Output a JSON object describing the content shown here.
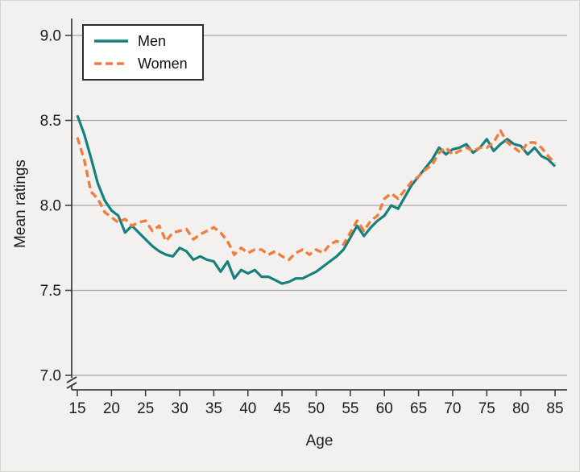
{
  "chart_data": {
    "type": "line",
    "title": "",
    "xlabel": "Age",
    "ylabel": "Mean ratings",
    "xlim": [
      15,
      85
    ],
    "ylim": [
      7.0,
      9.0
    ],
    "axis_break": true,
    "grid": "horizontal",
    "legend_position": "top-left",
    "x_ticks": [
      15,
      20,
      25,
      30,
      35,
      40,
      45,
      50,
      55,
      60,
      65,
      70,
      75,
      80,
      85
    ],
    "y_ticks": [
      7.0,
      7.5,
      8.0,
      8.5,
      9.0
    ],
    "y_tick_labels": [
      "7.0",
      "7.5",
      "8.0",
      "8.5",
      "9.0"
    ],
    "colors": {
      "background": "#f2f1ef",
      "grid": "#a6a6a6",
      "axis": "#404040",
      "text": "#1c1c1c"
    },
    "x": [
      15,
      16,
      17,
      18,
      19,
      20,
      21,
      22,
      23,
      24,
      25,
      26,
      27,
      28,
      29,
      30,
      31,
      32,
      33,
      34,
      35,
      36,
      37,
      38,
      39,
      40,
      41,
      42,
      43,
      44,
      45,
      46,
      47,
      48,
      49,
      50,
      51,
      52,
      53,
      54,
      55,
      56,
      57,
      58,
      59,
      60,
      61,
      62,
      63,
      64,
      65,
      66,
      67,
      68,
      69,
      70,
      71,
      72,
      73,
      74,
      75,
      76,
      77,
      78,
      79,
      80,
      81,
      82,
      83,
      84,
      85
    ],
    "series": [
      {
        "name": "Men",
        "color": "#17807d",
        "style": "solid",
        "values": [
          8.53,
          8.42,
          8.28,
          8.13,
          8.03,
          7.97,
          7.94,
          7.84,
          7.88,
          7.84,
          7.8,
          7.76,
          7.73,
          7.71,
          7.7,
          7.75,
          7.73,
          7.68,
          7.7,
          7.68,
          7.67,
          7.61,
          7.67,
          7.57,
          7.62,
          7.6,
          7.62,
          7.58,
          7.58,
          7.56,
          7.54,
          7.55,
          7.57,
          7.57,
          7.59,
          7.61,
          7.64,
          7.67,
          7.7,
          7.74,
          7.81,
          7.88,
          7.82,
          7.87,
          7.91,
          7.94,
          8.0,
          7.98,
          8.05,
          8.12,
          8.17,
          8.22,
          8.27,
          8.34,
          8.3,
          8.33,
          8.34,
          8.36,
          8.31,
          8.34,
          8.39,
          8.32,
          8.36,
          8.39,
          8.36,
          8.35,
          8.3,
          8.34,
          8.29,
          8.27,
          8.23
        ]
      },
      {
        "name": "Women",
        "color": "#ef7d3c",
        "style": "dashed",
        "values": [
          8.4,
          8.27,
          8.08,
          8.04,
          7.96,
          7.93,
          7.9,
          7.92,
          7.88,
          7.9,
          7.91,
          7.85,
          7.88,
          7.79,
          7.84,
          7.85,
          7.86,
          7.8,
          7.83,
          7.85,
          7.87,
          7.84,
          7.79,
          7.71,
          7.75,
          7.72,
          7.74,
          7.74,
          7.71,
          7.73,
          7.7,
          7.68,
          7.72,
          7.74,
          7.71,
          7.74,
          7.72,
          7.77,
          7.79,
          7.77,
          7.84,
          7.91,
          7.85,
          7.91,
          7.94,
          8.04,
          8.07,
          8.04,
          8.09,
          8.14,
          8.17,
          8.21,
          8.24,
          8.31,
          8.34,
          8.3,
          8.32,
          8.34,
          8.32,
          8.34,
          8.34,
          8.37,
          8.44,
          8.37,
          8.34,
          8.31,
          8.37,
          8.37,
          8.34,
          8.29,
          8.25
        ]
      }
    ]
  }
}
